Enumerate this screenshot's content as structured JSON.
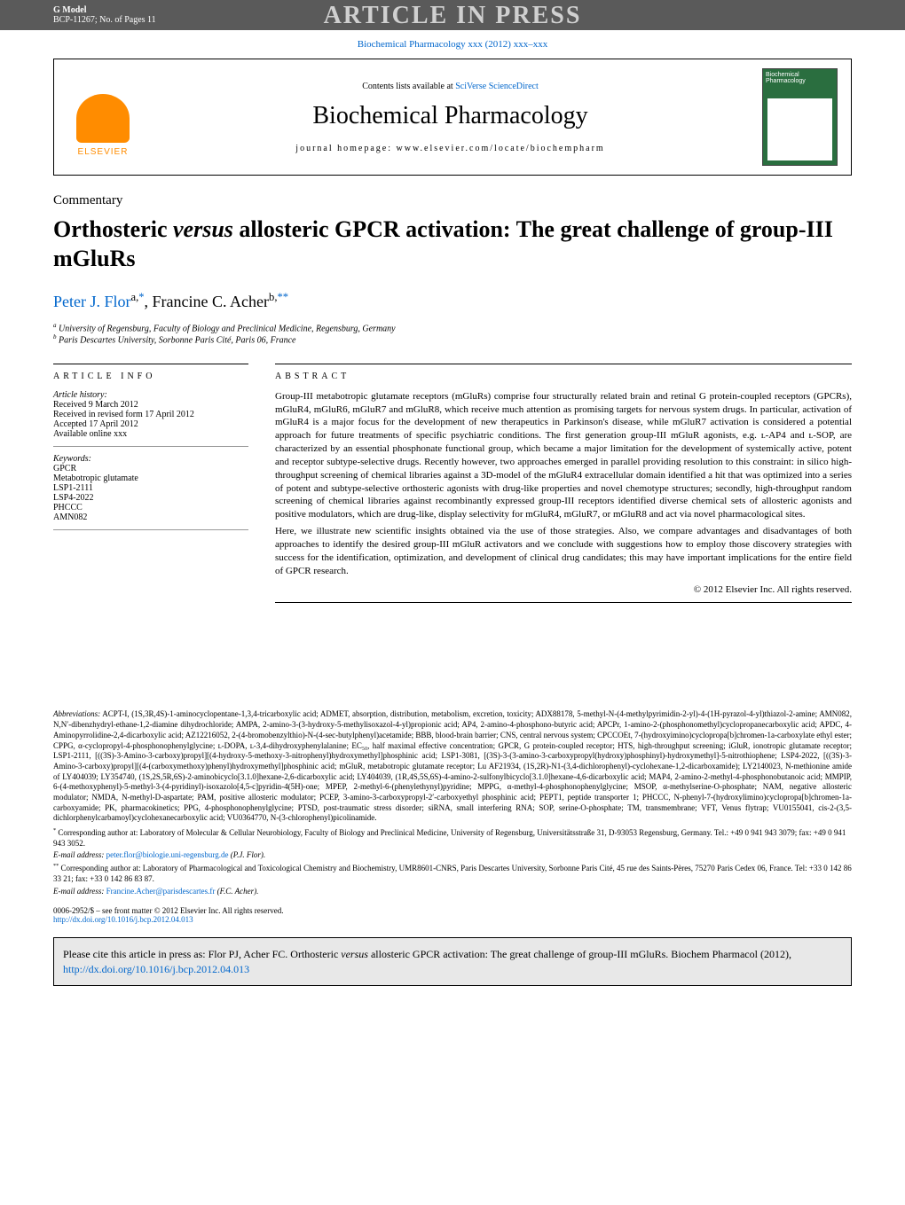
{
  "header": {
    "gmodel": "G Model",
    "bcp": "BCP-11267; No. of Pages 11",
    "watermark": "ARTICLE IN PRESS"
  },
  "journalRef": {
    "text": "Biochemical Pharmacology xxx (2012) xxx–xxx"
  },
  "journalBox": {
    "contentsText": "Contents lists available at ",
    "contentsLink": "SciVerse ScienceDirect",
    "journalTitle": "Biochemical Pharmacology",
    "homepageLabel": "journal homepage: www.elsevier.com/locate/biochempharm",
    "elsevierText": "ELSEVIER",
    "coverTitle": "Biochemical Pharmacology"
  },
  "article": {
    "type": "Commentary",
    "titlePart1": "Orthosteric ",
    "titleItalic": "versus",
    "titlePart2": " allosteric GPCR activation: The great challenge of group-III mGluRs",
    "author1": "Peter J. Flor",
    "author1sup": "a,",
    "author1star": "*",
    "author2": ", Francine C. Acher",
    "author2sup": "b,",
    "author2star": "**",
    "aff1sup": "a",
    "aff1": " University of Regensburg, Faculty of Biology and Preclinical Medicine, Regensburg, Germany",
    "aff2sup": "b",
    "aff2": " Paris Descartes University, Sorbonne Paris Cité, Paris 06, France"
  },
  "articleInfo": {
    "heading": "ARTICLE INFO",
    "historyLabel": "Article history:",
    "received": "Received 9 March 2012",
    "revised": "Received in revised form 17 April 2012",
    "accepted": "Accepted 17 April 2012",
    "online": "Available online xxx",
    "keywordsLabel": "Keywords:",
    "kw1": "GPCR",
    "kw2": "Metabotropic glutamate",
    "kw3": "LSP1-2111",
    "kw4": "LSP4-2022",
    "kw5": "PHCCC",
    "kw6": "AMN082"
  },
  "abstract": {
    "heading": "ABSTRACT",
    "para1": "Group-III metabotropic glutamate receptors (mGluRs) comprise four structurally related brain and retinal G protein-coupled receptors (GPCRs), mGluR4, mGluR6, mGluR7 and mGluR8, which receive much attention as promising targets for nervous system drugs. In particular, activation of mGluR4 is a major focus for the development of new therapeutics in Parkinson's disease, while mGluR7 activation is considered a potential approach for future treatments of specific psychiatric conditions. The first generation group-III mGluR agonists, e.g. ʟ-AP4 and ʟ-SOP, are characterized by an essential phosphonate functional group, which became a major limitation for the development of systemically active, potent and receptor subtype-selective drugs. Recently however, two approaches emerged in parallel providing resolution to this constraint: in silico high-throughput screening of chemical libraries against a 3D-model of the mGluR4 extracellular domain identified a hit that was optimized into a series of potent and subtype-selective orthosteric agonists with drug-like properties and novel chemotype structures; secondly, high-throughput random screening of chemical libraries against recombinantly expressed group-III receptors identified diverse chemical sets of allosteric agonists and positive modulators, which are drug-like, display selectivity for mGluR4, mGluR7, or mGluR8 and act via novel pharmacological sites.",
    "para2": "Here, we illustrate new scientific insights obtained via the use of those strategies. Also, we compare advantages and disadvantages of both approaches to identify the desired group-III mGluR activators and we conclude with suggestions how to employ those discovery strategies with success for the identification, optimization, and development of clinical drug candidates; this may have important implications for the entire field of GPCR research.",
    "copyright": "© 2012 Elsevier Inc. All rights reserved."
  },
  "abbreviations": {
    "label": "Abbreviations:",
    "text": " ACPT-I, (1S,3R,4S)-1-aminocyclopentane-1,3,4-tricarboxylic acid; ADMET, absorption, distribution, metabolism, excretion, toxicity; ADX88178, 5-methyl-N-(4-methylpyrimidin-2-yl)-4-(1H-pyrazol-4-yl)thiazol-2-amine; AMN082, N,N′-dibenzhydryl-ethane-1,2-diamine dihydrochloride; AMPA, 2-amino-3-(3-hydroxy-5-methylisoxazol-4-yl)propionic acid; AP4, 2-amino-4-phosphono-butyric acid; APCPr, 1-amino-2-(phosphonomethyl)cyclopropanecarboxylic acid; APDC, 4-Aminopyrrolidine-2,4-dicarboxylic acid; AZ12216052, 2-(4-bromobenzylthio)-N-(4-sec-butylphenyl)acetamide; BBB, blood-brain barrier; CNS, central nervous system; CPCCOEt, 7-(hydroxyimino)cyclopropa[b]chromen-1a-carboxylate ethyl ester; CPPG, α-cyclopropyl-4-phosphonophenylglycine; ʟ-DOPA, ʟ-3,4-dihydroxyphenylalanine; EC₅₀, half maximal effective concentration; GPCR, G protein-coupled receptor; HTS, high-throughput screening; iGluR, ionotropic glutamate receptor; LSP1-2111, [((3S)-3-Amino-3-carboxy)propyl][(4-hydroxy-5-methoxy-3-nitrophenyl)hydroxymethyl]phosphinic acid; LSP1-3081, [(3S)-3-(3-amino-3-carboxypropyl(hydroxy)phosphinyl)-hydroxymethyl]-5-nitrothiophene; LSP4-2022, [((3S)-3-Amino-3-carboxy)propyl][(4-(carboxymethoxy)phenyl)hydroxymethyl]phosphinic acid; mGluR, metabotropic glutamate receptor; Lu AF21934, (1S,2R)-N1-(3,4-dichlorophenyl)-cyclohexane-1,2-dicarboxamide); LY2140023, N-methionine amide of LY404039; LY354740, (1S,2S,5R,6S)-2-aminobicyclo[3.1.0]hexane-2,6-dicarboxylic acid; LY404039, (1R,4S,5S,6S)-4-amino-2-sulfonylbicyclo[3.1.0]hexane-4,6-dicarboxylic acid; MAP4, 2-amino-2-methyl-4-phosphonobutanoic acid; MMPIP, 6-(4-methoxyphenyl)-5-methyl-3-(4-pyridinyl)-isoxazolo[4,5-c]pyridin-4(5H)-one; MPEP, 2-methyl-6-(phenylethynyl)pyridine; MPPG, α-methyl-4-phosphonophenylglycine; MSOP, α-methylserine-O-phosphate; NAM, negative allosteric modulator; NMDA, N-methyl-D-aspartate; PAM, positive allosteric modulator; PCEP, 3-amino-3-carboxypropyl-2′-carboxyethyl phosphinic acid; PEPT1, peptide transporter 1; PHCCC, N-phenyl-7-(hydroxylimino)cyclopropa[b]chromen-1a-carboxyamide; PK, pharmacokinetics; PPG, 4-phosphonophenylglycine; PTSD, post-traumatic stress disorder; siRNA, small interfering RNA; SOP, serine-O-phosphate; TM, transmembrane; VFT, Venus flytrap; VU0155041, cis-2-(3,5-dichlorphenylcarbamoyl)cyclohexanecarboxylic acid; VU0364770, N-(3-chlorophenyl)picolinamide."
  },
  "corresponding": {
    "star1": "*",
    "text1": " Corresponding author at: Laboratory of Molecular & Cellular Neurobiology, Faculty of Biology and Preclinical Medicine, University of Regensburg, Universitätsstraße 31, D-93053 Regensburg, Germany. Tel.: +49 0 941 943 3079; fax: +49 0 941 943 3052.",
    "emailLabel1": "E-mail address: ",
    "email1": "peter.flor@biologie.uni-regensburg.de",
    "emailSuffix1": " (P.J. Flor).",
    "star2": "**",
    "text2": " Corresponding author at: Laboratory of Pharmacological and Toxicological Chemistry and Biochemistry, UMR8601-CNRS, Paris Descartes University, Sorbonne Paris Cité, 45 rue des Saints-Pères, 75270 Paris Cedex 06, France. Tel: +33 0 142 86 33 21; fax: +33 0 142 86 83 87.",
    "emailLabel2": "E-mail address: ",
    "email2": "Francine.Acher@parisdescartes.fr",
    "emailSuffix2": " (F.C. Acher)."
  },
  "frontMatter": {
    "text": "0006-2952/$ – see front matter © 2012 Elsevier Inc. All rights reserved.",
    "doi": "http://dx.doi.org/10.1016/j.bcp.2012.04.013"
  },
  "citeBox": {
    "text1": "Please cite this article in press as: Flor PJ, Acher FC. Orthosteric ",
    "italic": "versus",
    "text2": " allosteric GPCR activation: The great challenge of group-III mGluRs. Biochem Pharmacol (2012), ",
    "link": "http://dx.doi.org/10.1016/j.bcp.2012.04.013"
  }
}
